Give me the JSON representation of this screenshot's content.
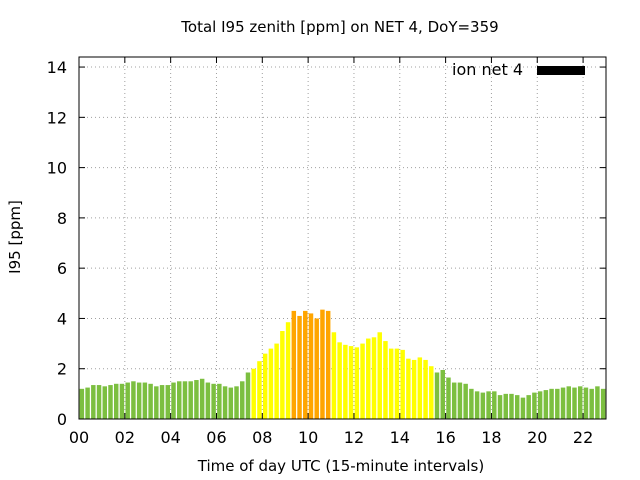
{
  "chart_data": {
    "type": "bar",
    "title": "Total I95 zenith [ppm] on NET 4, DoY=359",
    "xlabel": "Time of day UTC (15-minute intervals)",
    "ylabel": "I95 [ppm]",
    "ylim": [
      0,
      14.4
    ],
    "xlim": [
      0,
      23
    ],
    "yticks": [
      0,
      2,
      4,
      6,
      8,
      10,
      12,
      14
    ],
    "xticks": [
      0,
      2,
      4,
      6,
      8,
      10,
      12,
      14,
      16,
      18,
      20,
      22
    ],
    "xtick_labels": [
      "00",
      "02",
      "04",
      "06",
      "08",
      "10",
      "12",
      "14",
      "16",
      "18",
      "20",
      "22"
    ],
    "grid": true,
    "legend": {
      "label": "ion net 4",
      "color": "#000000",
      "position": "top-right"
    },
    "colors": {
      "low": "#7cbf40",
      "mid": "#ffff00",
      "high": "#ffa500"
    },
    "bar_interval_hours": 0.25,
    "values": [
      1.2,
      1.25,
      1.35,
      1.35,
      1.3,
      1.35,
      1.4,
      1.4,
      1.45,
      1.5,
      1.45,
      1.45,
      1.4,
      1.3,
      1.35,
      1.35,
      1.45,
      1.5,
      1.5,
      1.5,
      1.55,
      1.6,
      1.45,
      1.4,
      1.4,
      1.3,
      1.25,
      1.3,
      1.5,
      1.85,
      2.0,
      2.3,
      2.6,
      2.8,
      3.0,
      3.5,
      3.85,
      4.3,
      4.1,
      4.3,
      4.2,
      4.0,
      4.35,
      4.3,
      3.45,
      3.05,
      2.95,
      2.9,
      2.85,
      3.0,
      3.2,
      3.25,
      3.45,
      3.1,
      2.8,
      2.8,
      2.75,
      2.4,
      2.35,
      2.45,
      2.35,
      2.1,
      1.85,
      1.95,
      1.65,
      1.45,
      1.45,
      1.4,
      1.2,
      1.1,
      1.05,
      1.1,
      1.1,
      0.95,
      1.0,
      1.0,
      0.95,
      0.85,
      0.95,
      1.05,
      1.1,
      1.15,
      1.2,
      1.2,
      1.25,
      1.3,
      1.25,
      1.3,
      1.25,
      1.2,
      1.3,
      1.2
    ],
    "categories": [
      "low",
      "low",
      "low",
      "low",
      "low",
      "low",
      "low",
      "low",
      "low",
      "low",
      "low",
      "low",
      "low",
      "low",
      "low",
      "low",
      "low",
      "low",
      "low",
      "low",
      "low",
      "low",
      "low",
      "low",
      "low",
      "low",
      "low",
      "low",
      "low",
      "low",
      "mid",
      "mid",
      "mid",
      "mid",
      "mid",
      "mid",
      "mid",
      "high",
      "high",
      "high",
      "high",
      "high",
      "high",
      "high",
      "mid",
      "mid",
      "mid",
      "mid",
      "mid",
      "mid",
      "mid",
      "mid",
      "mid",
      "mid",
      "mid",
      "mid",
      "mid",
      "mid",
      "mid",
      "mid",
      "mid",
      "mid",
      "low",
      "low",
      "low",
      "low",
      "low",
      "low",
      "low",
      "low",
      "low",
      "low",
      "low",
      "low",
      "low",
      "low",
      "low",
      "low",
      "low",
      "low",
      "low",
      "low",
      "low",
      "low",
      "low",
      "low",
      "low",
      "low",
      "low",
      "low",
      "low",
      "low"
    ]
  }
}
